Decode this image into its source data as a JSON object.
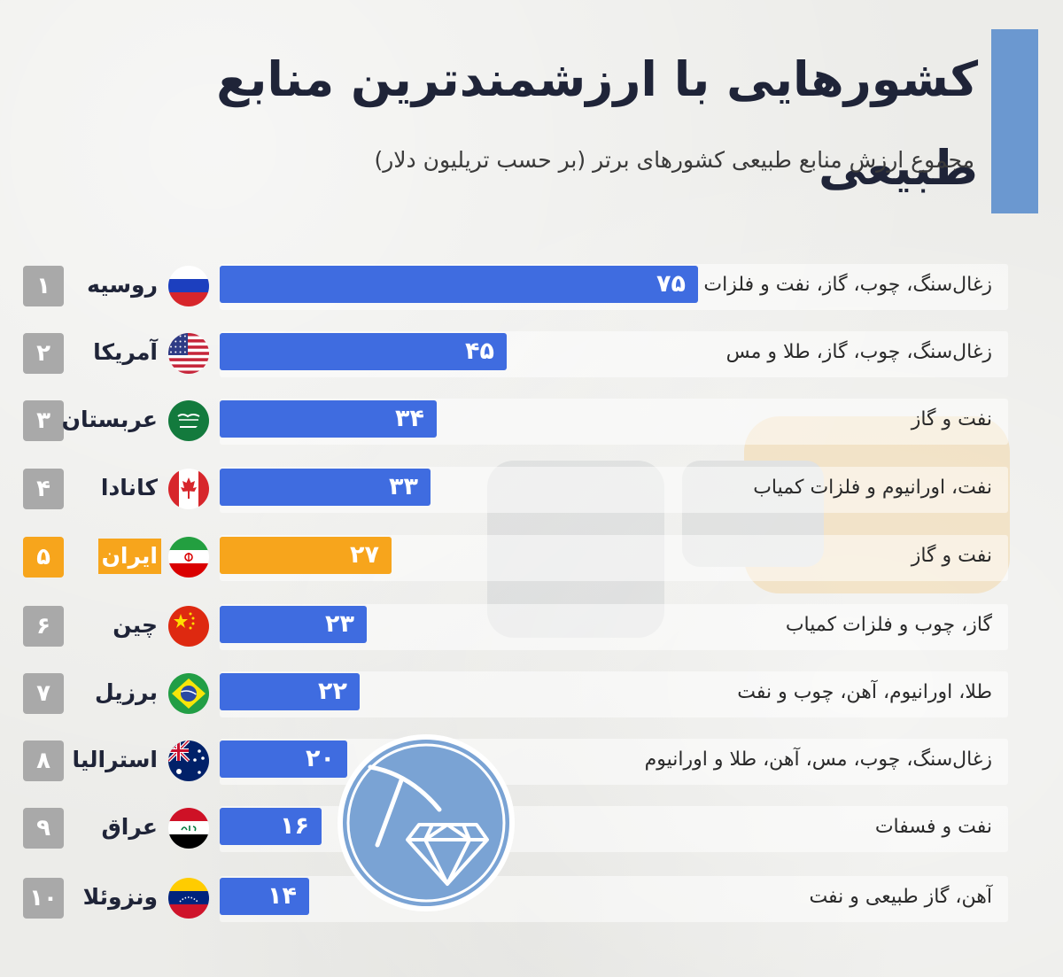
{
  "header": {
    "title": "کشورهایی با ارزشمندترین منابع طبیعی",
    "subtitle": "مجموع ارزش منابع طبیعی کشورهای برتر (بر حسب تریلیون دلار)"
  },
  "colors": {
    "bar": "#3f6ce0",
    "highlight": "#f7a51c",
    "rank_badge": "#a9a9a9",
    "accent": "#6b98d0",
    "title": "#1f2438"
  },
  "rows": [
    {
      "rank": "۱",
      "country": "روسیه",
      "value_label": "۷۵",
      "resources": "زغال‌سنگ، چوب، گاز، نفت و فلزات",
      "flag_icon": "russia-flag-icon"
    },
    {
      "rank": "۲",
      "country": "آمریکا",
      "value_label": "۴۵",
      "resources": "زغال‌سنگ، چوب، گاز، طلا و مس",
      "flag_icon": "usa-flag-icon"
    },
    {
      "rank": "۳",
      "country": "عربستان",
      "value_label": "۳۴",
      "resources": "نفت و گاز",
      "flag_icon": "saudi-arabia-flag-icon"
    },
    {
      "rank": "۴",
      "country": "کانادا",
      "value_label": "۳۳",
      "resources": "نفت، اورانیوم و فلزات کمیاب",
      "flag_icon": "canada-flag-icon"
    },
    {
      "rank": "۵",
      "country": "ایران",
      "value_label": "۲۷",
      "resources": "نفت و گاز",
      "flag_icon": "iran-flag-icon"
    },
    {
      "rank": "۶",
      "country": "چین",
      "value_label": "۲۳",
      "resources": "گاز، چوب و فلزات کمیاب",
      "flag_icon": "china-flag-icon"
    },
    {
      "rank": "۷",
      "country": "برزیل",
      "value_label": "۲۲",
      "resources": "طلا، اورانیوم، آهن، چوب و نفت",
      "flag_icon": "brazil-flag-icon"
    },
    {
      "rank": "۸",
      "country": "استرالیا",
      "value_label": "۲۰",
      "resources": "زغال‌سنگ، چوب، مس، آهن، طلا و اورانیوم",
      "flag_icon": "australia-flag-icon"
    },
    {
      "rank": "۹",
      "country": "عراق",
      "value_label": "۱۶",
      "resources": "نفت و فسفات",
      "flag_icon": "iraq-flag-icon"
    },
    {
      "rank": "۱۰",
      "country": "ونزوئلا",
      "value_label": "۱۴",
      "resources": "آهن، گاز طبیعی و نفت",
      "flag_icon": "venezuela-flag-icon"
    }
  ],
  "chart_data": {
    "type": "bar",
    "orientation": "horizontal",
    "title": "کشورهایی با ارزشمندترین منابع طبیعی",
    "subtitle": "مجموع ارزش منابع طبیعی کشورهای برتر (بر حسب تریلیون دلار)",
    "categories": [
      "روسیه",
      "آمریکا",
      "عربستان",
      "کانادا",
      "ایران",
      "چین",
      "برزیل",
      "استرالیا",
      "عراق",
      "ونزوئلا"
    ],
    "values": [
      75,
      45,
      34,
      33,
      27,
      23,
      22,
      20,
      16,
      14
    ],
    "highlight_index": 4,
    "grid": false
  }
}
